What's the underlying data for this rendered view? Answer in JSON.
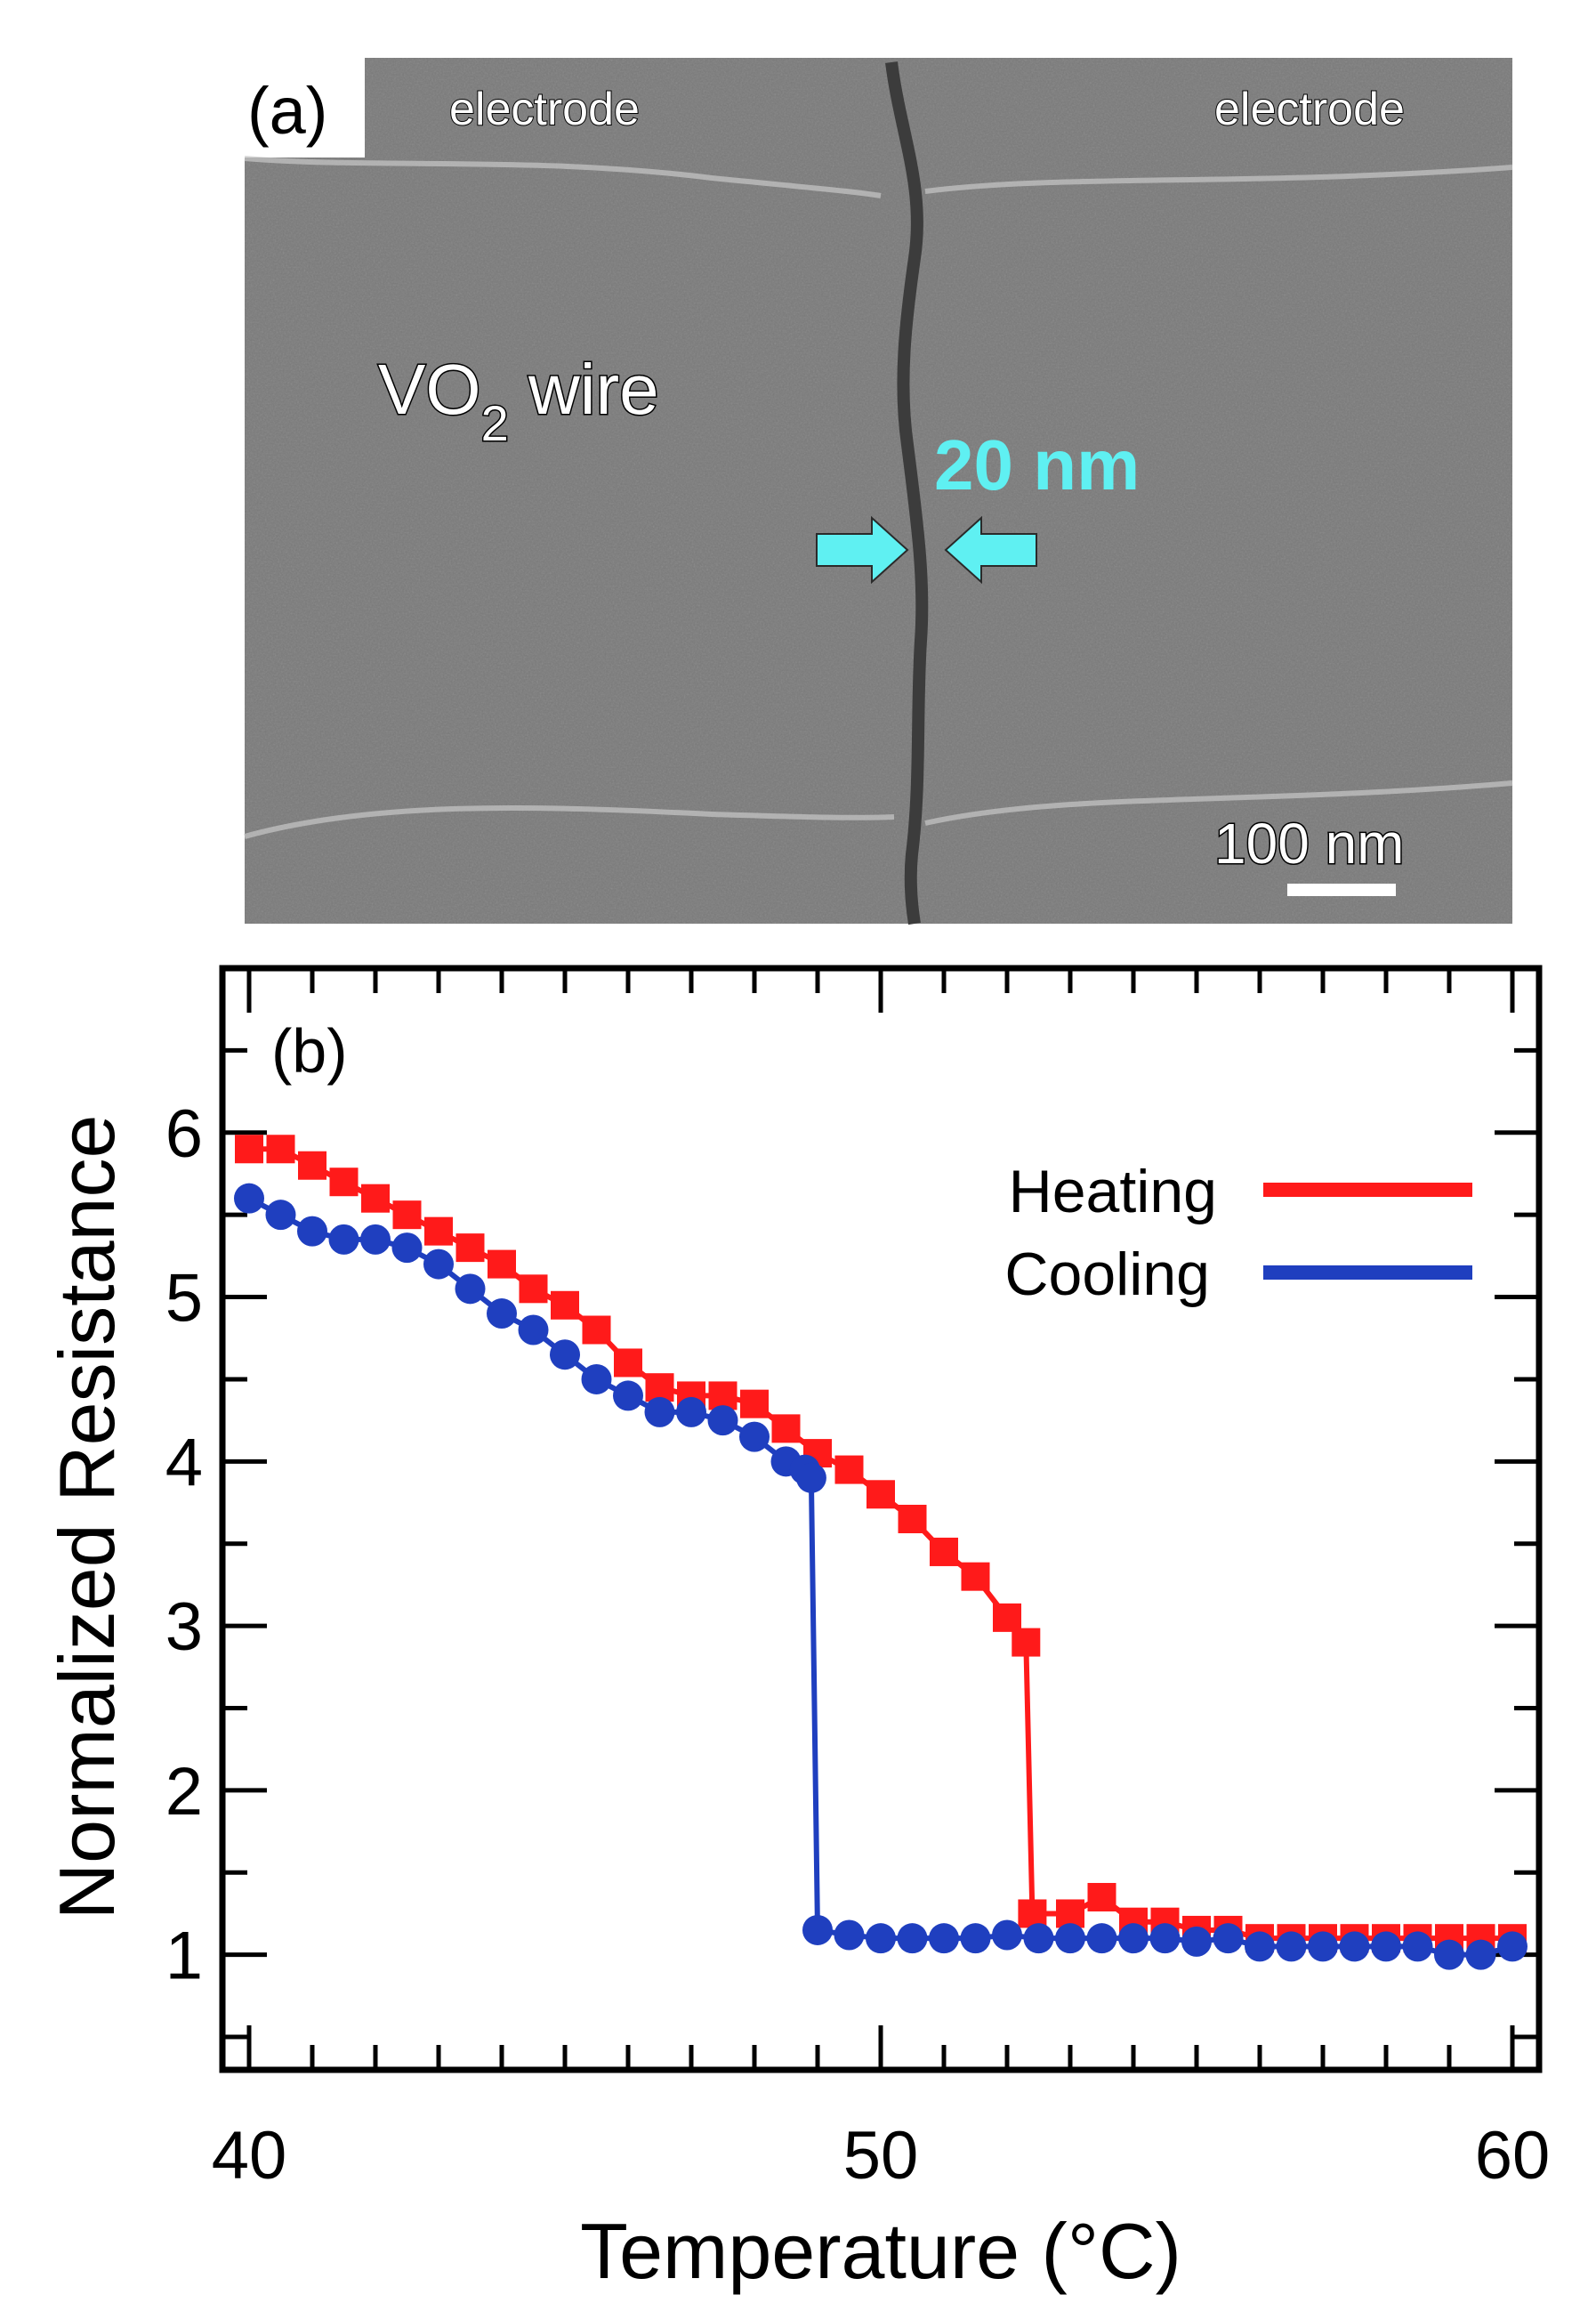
{
  "panel_a": {
    "label": "(a)",
    "electrode_left": "electrode",
    "electrode_right": "electrode",
    "wire_label_main": "VO",
    "wire_label_sub": "2",
    "wire_label_rest": " wire",
    "gap_label": "20 nm",
    "scale_bar_label": "100 nm",
    "colors": {
      "background": "#7a7a7a",
      "gap": "#3c3c3c",
      "accent": "#5ff0f2"
    }
  },
  "chart_data": {
    "type": "scatter",
    "panel_label": "(b)",
    "xlabel": "Temperature (°C)",
    "ylabel": "Normalized Resistance",
    "xlim": [
      40,
      60
    ],
    "ylim": [
      0.3,
      7.0
    ],
    "xticks": [
      40,
      50,
      60
    ],
    "yticks": [
      1,
      2,
      3,
      4,
      5,
      6
    ],
    "grid": false,
    "legend_position": "top-right",
    "series": [
      {
        "name": "Heating",
        "color": "#ff1a1a",
        "marker": "square",
        "x": [
          40.0,
          40.5,
          41.0,
          41.5,
          42.0,
          42.5,
          43.0,
          43.5,
          44.0,
          44.5,
          45.0,
          45.5,
          46.0,
          46.5,
          47.0,
          47.5,
          48.0,
          48.5,
          49.0,
          49.5,
          50.0,
          50.5,
          51.0,
          51.5,
          52.0,
          52.3,
          52.4,
          53.0,
          53.5,
          54.0,
          54.5,
          55.0,
          55.5,
          56.0,
          56.5,
          57.0,
          57.5,
          58.0,
          58.5,
          59.0,
          59.5,
          60.0
        ],
        "y": [
          5.9,
          5.9,
          5.8,
          5.7,
          5.6,
          5.5,
          5.4,
          5.3,
          5.2,
          5.05,
          4.95,
          4.8,
          4.6,
          4.45,
          4.4,
          4.4,
          4.35,
          4.2,
          4.05,
          3.95,
          3.8,
          3.65,
          3.45,
          3.3,
          3.05,
          2.9,
          1.25,
          1.25,
          1.35,
          1.2,
          1.2,
          1.15,
          1.15,
          1.1,
          1.1,
          1.1,
          1.1,
          1.1,
          1.1,
          1.1,
          1.1,
          1.1
        ]
      },
      {
        "name": "Cooling",
        "color": "#1f3fbf",
        "marker": "circle",
        "x": [
          40.0,
          40.5,
          41.0,
          41.5,
          42.0,
          42.5,
          43.0,
          43.5,
          44.0,
          44.5,
          45.0,
          45.5,
          46.0,
          46.5,
          47.0,
          47.5,
          48.0,
          48.5,
          48.8,
          48.9,
          49.0,
          49.5,
          50.0,
          50.5,
          51.0,
          51.5,
          52.0,
          52.5,
          53.0,
          53.5,
          54.0,
          54.5,
          55.0,
          55.5,
          56.0,
          56.5,
          57.0,
          57.5,
          58.0,
          58.5,
          59.0,
          59.5,
          60.0
        ],
        "y": [
          5.6,
          5.5,
          5.4,
          5.35,
          5.35,
          5.3,
          5.2,
          5.05,
          4.9,
          4.8,
          4.65,
          4.5,
          4.4,
          4.3,
          4.3,
          4.25,
          4.15,
          4.0,
          3.95,
          3.9,
          1.15,
          1.12,
          1.1,
          1.1,
          1.1,
          1.1,
          1.12,
          1.1,
          1.1,
          1.1,
          1.1,
          1.1,
          1.08,
          1.1,
          1.05,
          1.05,
          1.05,
          1.05,
          1.05,
          1.05,
          1.0,
          1.0,
          1.05
        ]
      }
    ]
  }
}
